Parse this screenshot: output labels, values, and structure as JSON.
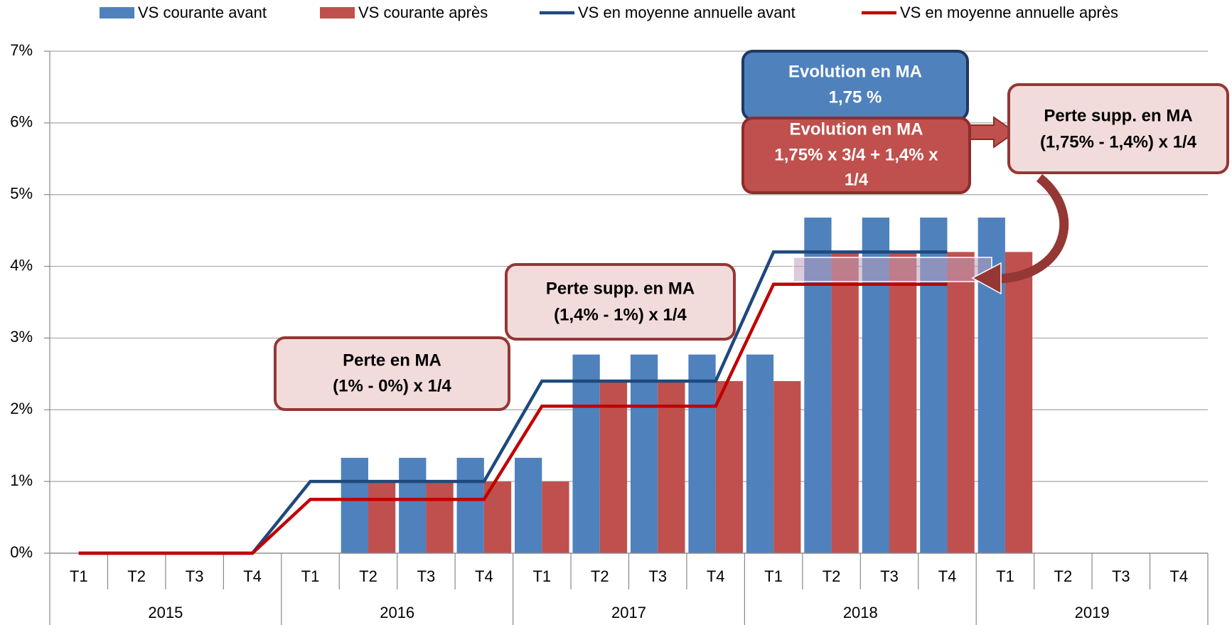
{
  "chart_data": {
    "type": "bar",
    "categories": [
      "T1",
      "T2",
      "T3",
      "T4",
      "T1",
      "T2",
      "T3",
      "T4",
      "T1",
      "T2",
      "T3",
      "T4",
      "T1",
      "T2",
      "T3",
      "T4",
      "T1",
      "T2",
      "T3",
      "T4"
    ],
    "groups": [
      "2015",
      "2016",
      "2017",
      "2018",
      "2019"
    ],
    "series": [
      {
        "name": "VS courante avant",
        "type": "bar",
        "color": "#4f81bd",
        "values": [
          null,
          null,
          null,
          null,
          null,
          1.33,
          1.33,
          1.33,
          1.33,
          2.77,
          2.77,
          2.77,
          2.77,
          4.68,
          4.68,
          4.68,
          4.68,
          null,
          null,
          null
        ]
      },
      {
        "name": "VS courante après",
        "type": "bar",
        "color": "#c0504d",
        "values": [
          null,
          null,
          null,
          null,
          null,
          1.0,
          1.0,
          1.0,
          1.0,
          2.4,
          2.4,
          2.4,
          2.4,
          4.2,
          4.2,
          4.2,
          4.2,
          null,
          null,
          null
        ]
      },
      {
        "name": "VS en moyenne annuelle avant",
        "type": "line",
        "color": "#1f497d",
        "values": [
          0,
          0,
          0,
          0,
          1,
          1,
          1,
          1,
          2.4,
          2.4,
          2.4,
          2.4,
          4.2,
          4.2,
          4.2,
          4.2,
          null,
          null,
          null,
          null
        ]
      },
      {
        "name": "VS en moyenne annuelle après",
        "type": "line",
        "color": "#c00000",
        "values": [
          0,
          0,
          0,
          0,
          0.75,
          0.75,
          0.75,
          0.75,
          2.05,
          2.05,
          2.05,
          2.05,
          3.75,
          3.75,
          3.75,
          3.75,
          null,
          null,
          null,
          null
        ]
      }
    ],
    "ylim": [
      0,
      7
    ],
    "yticks": [
      {
        "value": 0,
        "label": "0%"
      },
      {
        "value": 1,
        "label": "1%"
      },
      {
        "value": 2,
        "label": "2%"
      },
      {
        "value": 3,
        "label": "3%"
      },
      {
        "value": 4,
        "label": "4%"
      },
      {
        "value": 5,
        "label": "5%"
      },
      {
        "value": 6,
        "label": "6%"
      },
      {
        "value": 7,
        "label": "7%"
      }
    ],
    "grid": true,
    "legend": "top",
    "annotations": [
      {
        "lines": [
          "Perte en MA",
          "(1% - 0%) x 1/4"
        ]
      },
      {
        "lines": [
          "Perte supp. en MA",
          "(1,4% - 1%) x 1/4"
        ]
      },
      {
        "lines": [
          "Evolution en MA",
          "1,75 %"
        ]
      },
      {
        "lines": [
          "Evolution en MA",
          "1,75% x 3/4 + 1,4% x",
          "1/4"
        ]
      },
      {
        "lines": [
          "Perte supp. en MA",
          "(1,75% - 1,4%) x 1/4"
        ]
      }
    ]
  }
}
